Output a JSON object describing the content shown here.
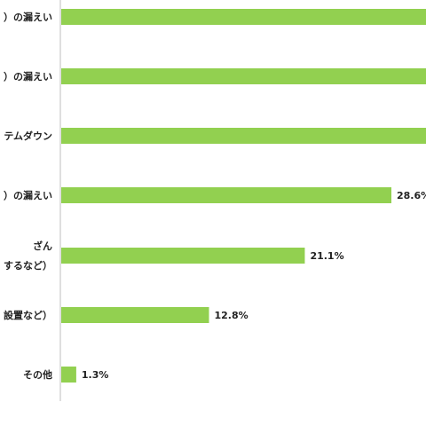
{
  "chart_data": {
    "type": "bar",
    "orientation": "horizontal",
    "bar_color": "#92d050",
    "axis_color": "#bfbfbf",
    "xlim": [
      0,
      50
    ],
    "grid": false,
    "categories": [
      [
        "）の漏えい"
      ],
      [
        "）の漏えい"
      ],
      [
        "テムダウン"
      ],
      [
        "）の漏えい"
      ],
      [
        "ざん",
        "するなど）"
      ],
      [
        "設置など）"
      ],
      [
        "その他"
      ]
    ],
    "values": [
      null,
      null,
      null,
      28.6,
      21.1,
      12.8,
      1.3
    ],
    "value_labels": [
      "",
      "",
      "",
      "28.6%",
      "21.1%",
      "12.8%",
      "1.3%"
    ]
  }
}
